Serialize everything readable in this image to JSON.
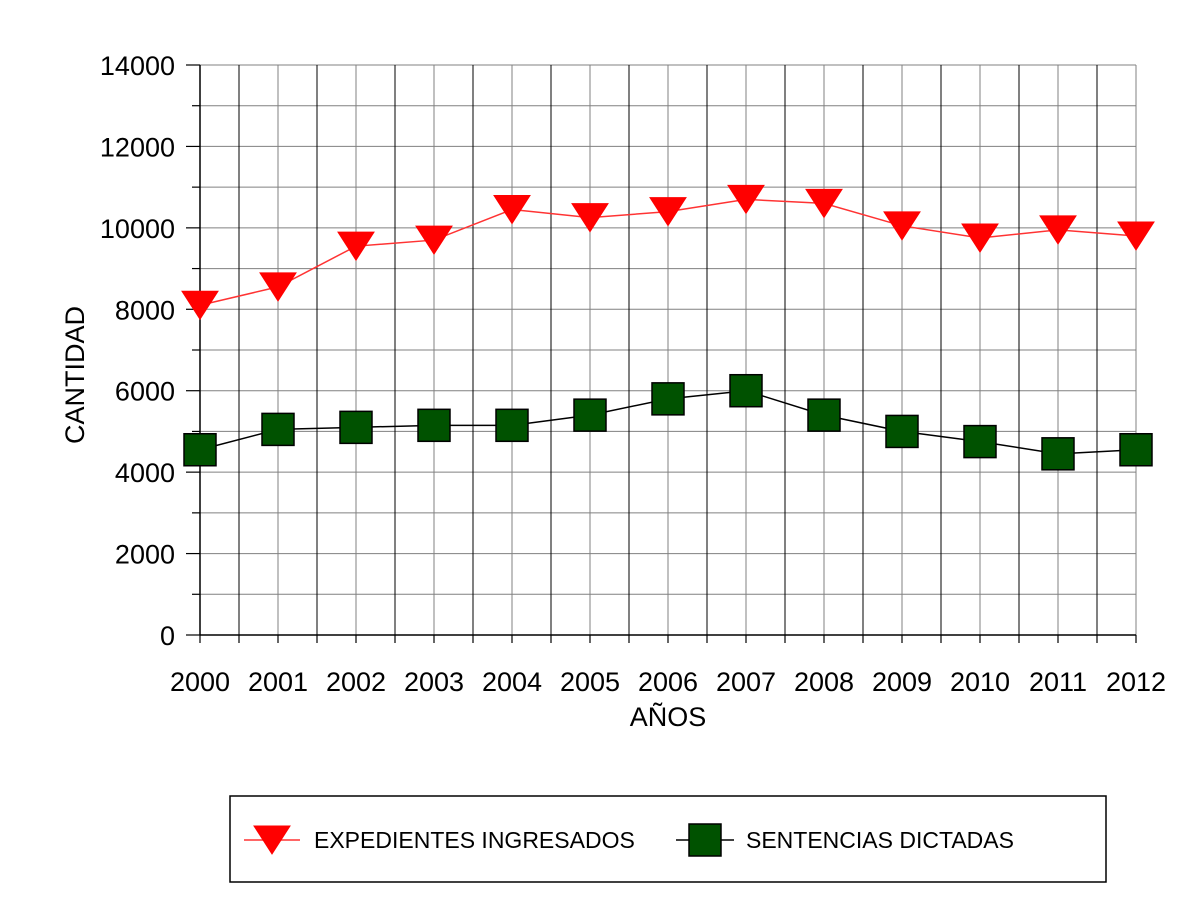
{
  "chart_data": {
    "type": "line",
    "title": "",
    "xlabel": "AÑOS",
    "ylabel": "CANTIDAD",
    "categories": [
      "2000",
      "2001",
      "2002",
      "2003",
      "2004",
      "2005",
      "2006",
      "2007",
      "2008",
      "2009",
      "2010",
      "2011",
      "2012"
    ],
    "ylim": [
      0,
      14000
    ],
    "yticks": [
      0,
      2000,
      4000,
      6000,
      8000,
      10000,
      12000,
      14000
    ],
    "grid": true,
    "legend_position": "bottom",
    "series": [
      {
        "name": "EXPEDIENTES INGRESADOS",
        "values": [
          8100,
          8550,
          9550,
          9700,
          10450,
          10250,
          10400,
          10700,
          10600,
          10050,
          9750,
          9950,
          9800
        ],
        "color": "#ff0000",
        "line_color": "#ff3333",
        "marker": "triangle-down"
      },
      {
        "name": "SENTENCIAS DICTADAS",
        "values": [
          4550,
          5050,
          5100,
          5150,
          5150,
          5400,
          5800,
          6000,
          5400,
          5000,
          4750,
          4450,
          4550
        ],
        "color": "#005200",
        "line_color": "#000000",
        "marker": "square"
      }
    ]
  }
}
